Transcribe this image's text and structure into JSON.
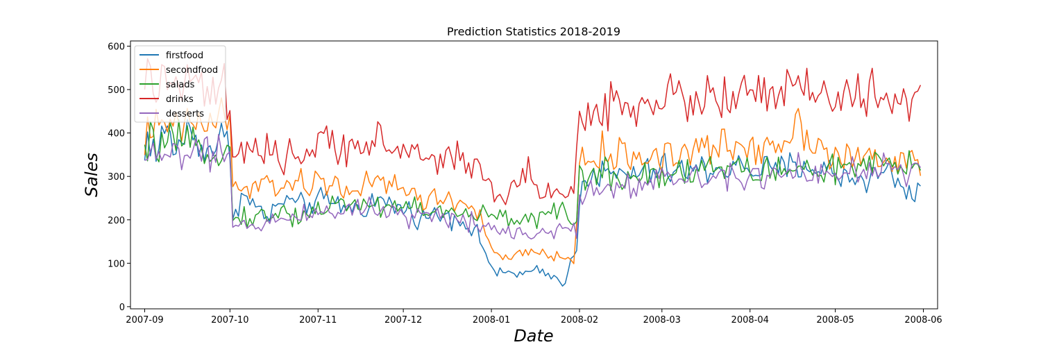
{
  "chart_data": {
    "type": "line",
    "title": "Prediction Statistics 2018-2019",
    "xlabel": "Date",
    "ylabel": "Sales",
    "xlim": [
      "2007-08-27",
      "2008-06-06"
    ],
    "ylim": [
      -5,
      612
    ],
    "x_ticks": [
      "2007-09",
      "2007-10",
      "2007-11",
      "2007-12",
      "2008-01",
      "2008-02",
      "2008-03",
      "2008-04",
      "2008-05",
      "2008-06"
    ],
    "y_ticks": [
      0,
      100,
      200,
      300,
      400,
      500,
      600
    ],
    "grid": false,
    "legend_position": "top-left",
    "series": [
      {
        "name": "firstfood",
        "color": "#1f77b4",
        "keypoints": [
          [
            "2007-09-01",
            330
          ],
          [
            "2007-09-02",
            405
          ],
          [
            "2007-09-05",
            345
          ],
          [
            "2007-09-08",
            410
          ],
          [
            "2007-09-12",
            360
          ],
          [
            "2007-09-16",
            405
          ],
          [
            "2007-09-20",
            380
          ],
          [
            "2007-09-24",
            360
          ],
          [
            "2007-09-28",
            390
          ],
          [
            "2007-10-01",
            365
          ],
          [
            "2007-10-02",
            215
          ],
          [
            "2007-10-05",
            255
          ],
          [
            "2007-10-10",
            230
          ],
          [
            "2007-10-15",
            205
          ],
          [
            "2007-10-20",
            250
          ],
          [
            "2007-10-25",
            230
          ],
          [
            "2007-11-01",
            245
          ],
          [
            "2007-11-08",
            235
          ],
          [
            "2007-11-15",
            225
          ],
          [
            "2007-11-22",
            245
          ],
          [
            "2007-12-01",
            225
          ],
          [
            "2007-12-08",
            205
          ],
          [
            "2007-12-15",
            215
          ],
          [
            "2007-12-22",
            200
          ],
          [
            "2007-12-27",
            165
          ],
          [
            "2007-12-31",
            110
          ],
          [
            "2008-01-03",
            70
          ],
          [
            "2008-01-07",
            80
          ],
          [
            "2008-01-12",
            75
          ],
          [
            "2008-01-17",
            80
          ],
          [
            "2008-01-22",
            70
          ],
          [
            "2008-01-27",
            60
          ],
          [
            "2008-01-31",
            140
          ],
          [
            "2008-02-02",
            310
          ],
          [
            "2008-02-10",
            300
          ],
          [
            "2008-02-20",
            305
          ],
          [
            "2008-03-01",
            315
          ],
          [
            "2008-03-10",
            310
          ],
          [
            "2008-03-20",
            320
          ],
          [
            "2008-04-01",
            320
          ],
          [
            "2008-04-10",
            310
          ],
          [
            "2008-04-20",
            330
          ],
          [
            "2008-05-01",
            305
          ],
          [
            "2008-05-10",
            295
          ],
          [
            "2008-05-20",
            310
          ],
          [
            "2008-05-28",
            255
          ],
          [
            "2008-05-31",
            285
          ]
        ]
      },
      {
        "name": "secondfood",
        "color": "#ff7f0e",
        "keypoints": [
          [
            "2007-09-01",
            375
          ],
          [
            "2007-09-03",
            430
          ],
          [
            "2007-09-06",
            395
          ],
          [
            "2007-09-10",
            420
          ],
          [
            "2007-09-15",
            405
          ],
          [
            "2007-09-20",
            435
          ],
          [
            "2007-09-24",
            410
          ],
          [
            "2007-09-28",
            450
          ],
          [
            "2007-10-01",
            420
          ],
          [
            "2007-10-02",
            270
          ],
          [
            "2007-10-05",
            275
          ],
          [
            "2007-10-10",
            270
          ],
          [
            "2007-10-15",
            280
          ],
          [
            "2007-10-20",
            285
          ],
          [
            "2007-10-25",
            275
          ],
          [
            "2007-11-01",
            285
          ],
          [
            "2007-11-08",
            280
          ],
          [
            "2007-11-15",
            270
          ],
          [
            "2007-11-22",
            285
          ],
          [
            "2007-12-01",
            270
          ],
          [
            "2007-12-08",
            250
          ],
          [
            "2007-12-15",
            245
          ],
          [
            "2007-12-22",
            240
          ],
          [
            "2007-12-28",
            215
          ],
          [
            "2007-12-31",
            150
          ],
          [
            "2008-01-03",
            110
          ],
          [
            "2008-01-08",
            115
          ],
          [
            "2008-01-13",
            120
          ],
          [
            "2008-01-18",
            125
          ],
          [
            "2008-01-24",
            115
          ],
          [
            "2008-01-30",
            105
          ],
          [
            "2008-02-01",
            330
          ],
          [
            "2008-02-10",
            350
          ],
          [
            "2008-02-20",
            345
          ],
          [
            "2008-03-01",
            350
          ],
          [
            "2008-03-10",
            355
          ],
          [
            "2008-03-20",
            365
          ],
          [
            "2008-04-01",
            370
          ],
          [
            "2008-04-10",
            375
          ],
          [
            "2008-04-18",
            420
          ],
          [
            "2008-04-25",
            380
          ],
          [
            "2008-05-01",
            345
          ],
          [
            "2008-05-10",
            340
          ],
          [
            "2008-05-20",
            330
          ],
          [
            "2008-05-31",
            345
          ]
        ]
      },
      {
        "name": "salads",
        "color": "#2ca02c",
        "keypoints": [
          [
            "2007-09-01",
            345
          ],
          [
            "2007-09-04",
            385
          ],
          [
            "2007-09-08",
            370
          ],
          [
            "2007-09-12",
            380
          ],
          [
            "2007-09-16",
            360
          ],
          [
            "2007-09-20",
            375
          ],
          [
            "2007-09-24",
            370
          ],
          [
            "2007-09-28",
            360
          ],
          [
            "2007-10-01",
            350
          ],
          [
            "2007-10-02",
            200
          ],
          [
            "2007-10-06",
            210
          ],
          [
            "2007-10-12",
            205
          ],
          [
            "2007-10-18",
            215
          ],
          [
            "2007-10-25",
            210
          ],
          [
            "2007-11-01",
            225
          ],
          [
            "2007-11-08",
            235
          ],
          [
            "2007-11-15",
            240
          ],
          [
            "2007-11-22",
            230
          ],
          [
            "2007-12-01",
            235
          ],
          [
            "2007-12-08",
            225
          ],
          [
            "2007-12-15",
            215
          ],
          [
            "2007-12-22",
            210
          ],
          [
            "2007-12-28",
            215
          ],
          [
            "2008-01-02",
            205
          ],
          [
            "2008-01-08",
            200
          ],
          [
            "2008-01-14",
            210
          ],
          [
            "2008-01-20",
            205
          ],
          [
            "2008-01-26",
            215
          ],
          [
            "2008-01-31",
            200
          ],
          [
            "2008-02-01",
            300
          ],
          [
            "2008-02-10",
            305
          ],
          [
            "2008-02-20",
            300
          ],
          [
            "2008-03-01",
            310
          ],
          [
            "2008-03-10",
            315
          ],
          [
            "2008-03-20",
            320
          ],
          [
            "2008-04-01",
            315
          ],
          [
            "2008-04-10",
            310
          ],
          [
            "2008-04-20",
            320
          ],
          [
            "2008-05-01",
            315
          ],
          [
            "2008-05-10",
            320
          ],
          [
            "2008-05-20",
            325
          ],
          [
            "2008-05-31",
            310
          ]
        ]
      },
      {
        "name": "drinks",
        "color": "#d62728",
        "keypoints": [
          [
            "2007-09-01",
            450
          ],
          [
            "2007-09-02",
            555
          ],
          [
            "2007-09-05",
            505
          ],
          [
            "2007-09-09",
            530
          ],
          [
            "2007-09-13",
            495
          ],
          [
            "2007-09-17",
            520
          ],
          [
            "2007-09-21",
            500
          ],
          [
            "2007-09-25",
            480
          ],
          [
            "2007-09-29",
            510
          ],
          [
            "2007-10-01",
            430
          ],
          [
            "2007-10-02",
            360
          ],
          [
            "2007-10-05",
            345
          ],
          [
            "2007-10-10",
            355
          ],
          [
            "2007-10-15",
            340
          ],
          [
            "2007-10-20",
            350
          ],
          [
            "2007-10-25",
            345
          ],
          [
            "2007-11-01",
            370
          ],
          [
            "2007-11-08",
            375
          ],
          [
            "2007-11-15",
            380
          ],
          [
            "2007-11-22",
            375
          ],
          [
            "2007-12-01",
            360
          ],
          [
            "2007-12-08",
            345
          ],
          [
            "2007-12-15",
            340
          ],
          [
            "2007-12-20",
            345
          ],
          [
            "2007-12-26",
            335
          ],
          [
            "2007-12-31",
            275
          ],
          [
            "2008-01-04",
            255
          ],
          [
            "2008-01-09",
            265
          ],
          [
            "2008-01-14",
            310
          ],
          [
            "2008-01-19",
            270
          ],
          [
            "2008-01-24",
            260
          ],
          [
            "2008-01-30",
            255
          ],
          [
            "2008-02-01",
            430
          ],
          [
            "2008-02-10",
            465
          ],
          [
            "2008-02-20",
            470
          ],
          [
            "2008-03-01",
            480
          ],
          [
            "2008-03-10",
            475
          ],
          [
            "2008-03-20",
            485
          ],
          [
            "2008-04-01",
            480
          ],
          [
            "2008-04-10",
            490
          ],
          [
            "2008-04-20",
            500
          ],
          [
            "2008-05-01",
            480
          ],
          [
            "2008-05-10",
            485
          ],
          [
            "2008-05-20",
            475
          ],
          [
            "2008-05-31",
            495
          ]
        ]
      },
      {
        "name": "desserts",
        "color": "#9467bd",
        "keypoints": [
          [
            "2007-09-01",
            330
          ],
          [
            "2007-09-04",
            355
          ],
          [
            "2007-09-08",
            350
          ],
          [
            "2007-09-12",
            360
          ],
          [
            "2007-09-16",
            345
          ],
          [
            "2007-09-20",
            355
          ],
          [
            "2007-09-24",
            345
          ],
          [
            "2007-09-28",
            350
          ],
          [
            "2007-10-01",
            340
          ],
          [
            "2007-10-02",
            175
          ],
          [
            "2007-10-06",
            190
          ],
          [
            "2007-10-12",
            195
          ],
          [
            "2007-10-18",
            200
          ],
          [
            "2007-10-25",
            205
          ],
          [
            "2007-11-01",
            220
          ],
          [
            "2007-11-08",
            225
          ],
          [
            "2007-11-15",
            230
          ],
          [
            "2007-11-22",
            225
          ],
          [
            "2007-12-01",
            215
          ],
          [
            "2007-12-08",
            210
          ],
          [
            "2007-12-15",
            205
          ],
          [
            "2007-12-22",
            200
          ],
          [
            "2007-12-28",
            195
          ],
          [
            "2008-01-02",
            180
          ],
          [
            "2008-01-08",
            175
          ],
          [
            "2008-01-14",
            170
          ],
          [
            "2008-01-20",
            175
          ],
          [
            "2008-01-26",
            180
          ],
          [
            "2008-01-31",
            170
          ],
          [
            "2008-02-01",
            255
          ],
          [
            "2008-02-10",
            280
          ],
          [
            "2008-02-20",
            285
          ],
          [
            "2008-03-01",
            290
          ],
          [
            "2008-03-10",
            300
          ],
          [
            "2008-03-20",
            305
          ],
          [
            "2008-04-01",
            310
          ],
          [
            "2008-04-10",
            305
          ],
          [
            "2008-04-20",
            320
          ],
          [
            "2008-05-01",
            300
          ],
          [
            "2008-05-10",
            305
          ],
          [
            "2008-05-20",
            320
          ],
          [
            "2008-05-31",
            305
          ]
        ]
      }
    ]
  }
}
